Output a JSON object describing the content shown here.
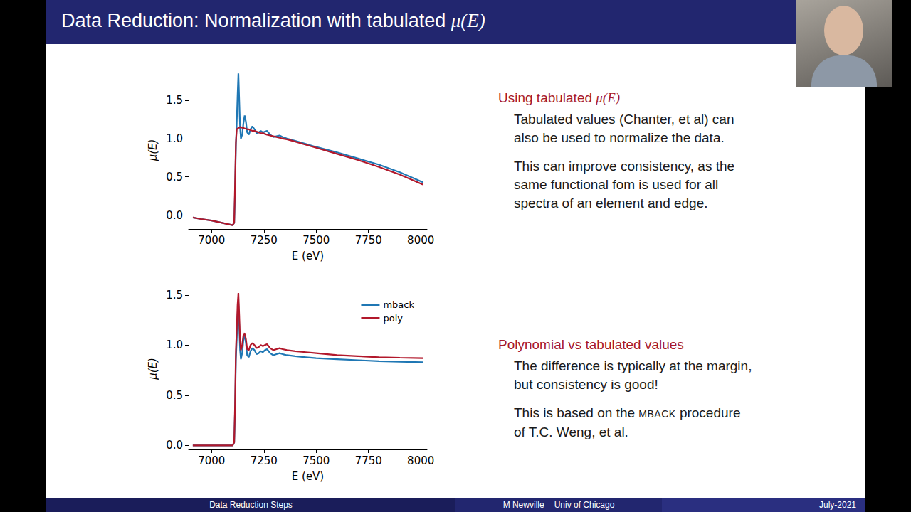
{
  "slide": {
    "title": {
      "text": "Data Reduction: Normalization with tabulated ",
      "math": "μ(E)"
    },
    "sections": [
      {
        "heading": {
          "text": "Using tabulated ",
          "math": "μ(E)"
        },
        "paragraphs": [
          {
            "text": "Tabulated values (Chanter, et al) can also be used to normalize the data."
          },
          {
            "text": "This can improve consistency, as the same functional fom is used for all spectra of an element and edge."
          }
        ]
      },
      {
        "heading": {
          "text": "Polynomial vs tabulated values"
        },
        "paragraphs": [
          {
            "text": "The difference is typically at the margin, but consistency is good!"
          },
          {
            "text": "This is based on the ",
            "smallcaps": "MBACK",
            "after": " procedure of T.C. Weng, et al."
          }
        ]
      }
    ],
    "footer": {
      "left": "Data Reduction Steps",
      "center": [
        "M Newville",
        "Univ of Chicago"
      ],
      "right": "July-2021"
    }
  },
  "chart_data": [
    {
      "type": "line",
      "xlabel": "E (eV)",
      "ylabel": "μ(E)",
      "grid": false,
      "xlim": [
        6890,
        8030
      ],
      "xticks": [
        7000,
        7250,
        7500,
        7750,
        8000
      ],
      "ylim": [
        -0.18,
        1.88
      ],
      "yticks": [
        {
          "value": 0,
          "label": "0.0"
        },
        {
          "value": 0.5,
          "label": "0.5"
        },
        {
          "value": 1,
          "label": "1.0"
        },
        {
          "value": 1.5,
          "label": "1.5"
        }
      ],
      "x": [
        6910,
        6950,
        7000,
        7050,
        7100,
        7108,
        7112,
        7116,
        7120,
        7124,
        7128,
        7132,
        7136,
        7140,
        7146,
        7152,
        7158,
        7164,
        7170,
        7178,
        7186,
        7195,
        7205,
        7215,
        7225,
        7235,
        7245,
        7255,
        7265,
        7280,
        7295,
        7310,
        7325,
        7340,
        7360,
        7400,
        7450,
        7500,
        7600,
        7700,
        7800,
        7900,
        8010
      ],
      "series": [
        {
          "color": "#1f77b4",
          "values": [
            -0.03,
            -0.05,
            -0.07,
            -0.1,
            -0.13,
            -0.1,
            0.3,
            0.9,
            1.2,
            1.55,
            1.85,
            1.5,
            1.15,
            1.0,
            1.05,
            1.2,
            1.3,
            1.22,
            1.08,
            1.05,
            1.12,
            1.16,
            1.12,
            1.07,
            1.08,
            1.1,
            1.08,
            1.09,
            1.1,
            1.05,
            1.02,
            1.03,
            1.04,
            1.02,
            1.0,
            0.97,
            0.93,
            0.89,
            0.82,
            0.74,
            0.66,
            0.56,
            0.43
          ]
        },
        {
          "color": "#b2182b",
          "values": [
            -0.03,
            -0.05,
            -0.07,
            -0.1,
            -0.13,
            -0.1,
            0.4,
            0.95,
            1.12,
            1.13,
            1.14,
            1.14,
            1.15,
            1.15,
            1.14,
            1.14,
            1.13,
            1.13,
            1.12,
            1.12,
            1.11,
            1.1,
            1.1,
            1.09,
            1.08,
            1.07,
            1.07,
            1.06,
            1.05,
            1.04,
            1.03,
            1.02,
            1.01,
            1.0,
            0.99,
            0.96,
            0.92,
            0.88,
            0.8,
            0.72,
            0.63,
            0.53,
            0.4
          ]
        }
      ]
    },
    {
      "type": "line",
      "xlabel": "E (eV)",
      "ylabel": "μ(E)",
      "grid": false,
      "legend": "upper right",
      "xlim": [
        6890,
        8030
      ],
      "xticks": [
        7000,
        7250,
        7500,
        7750,
        8000
      ],
      "ylim": [
        -0.04,
        1.57
      ],
      "yticks": [
        {
          "value": 0,
          "label": "0.0"
        },
        {
          "value": 0.5,
          "label": "0.5"
        },
        {
          "value": 1,
          "label": "1.0"
        },
        {
          "value": 1.5,
          "label": "1.5"
        }
      ],
      "x": [
        6910,
        6950,
        7000,
        7050,
        7100,
        7108,
        7112,
        7116,
        7120,
        7124,
        7128,
        7132,
        7136,
        7140,
        7146,
        7152,
        7158,
        7164,
        7170,
        7178,
        7186,
        7195,
        7205,
        7215,
        7225,
        7235,
        7245,
        7255,
        7265,
        7280,
        7295,
        7310,
        7325,
        7340,
        7360,
        7400,
        7450,
        7500,
        7600,
        7700,
        7800,
        7900,
        8010
      ],
      "series": [
        {
          "name": "mback",
          "color": "#1f77b4",
          "values": [
            0,
            0,
            0,
            0,
            0,
            0.03,
            0.35,
            0.85,
            1.05,
            1.3,
            1.42,
            1.2,
            0.95,
            0.86,
            0.92,
            1.05,
            1.1,
            1.02,
            0.9,
            0.88,
            0.94,
            0.97,
            0.95,
            0.91,
            0.92,
            0.94,
            0.93,
            0.95,
            0.96,
            0.92,
            0.9,
            0.91,
            0.92,
            0.91,
            0.9,
            0.89,
            0.88,
            0.87,
            0.86,
            0.85,
            0.84,
            0.835,
            0.83
          ]
        },
        {
          "name": "poly",
          "color": "#b2182b",
          "values": [
            0,
            0,
            0,
            0,
            0,
            0.03,
            0.4,
            0.95,
            1.15,
            1.4,
            1.52,
            1.3,
            1.05,
            0.95,
            1.0,
            1.1,
            1.12,
            1.06,
            0.96,
            0.95,
            1.0,
            1.02,
            1.0,
            0.97,
            0.98,
            1.0,
            0.99,
            1.0,
            1.01,
            0.97,
            0.95,
            0.96,
            0.97,
            0.96,
            0.95,
            0.94,
            0.93,
            0.92,
            0.9,
            0.89,
            0.88,
            0.875,
            0.87
          ]
        }
      ]
    }
  ]
}
